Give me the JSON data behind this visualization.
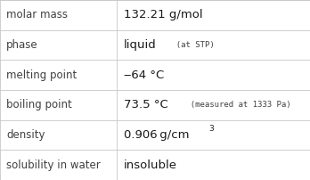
{
  "rows": [
    {
      "label": "molar mass",
      "value_parts": [
        {
          "text": "132.21 g/mol",
          "bold": false,
          "size": 9.5
        }
      ]
    },
    {
      "label": "phase",
      "value_parts": [
        {
          "text": "liquid",
          "bold": false,
          "size": 9.5
        },
        {
          "text": "  (at STP)",
          "bold": false,
          "size": 6.5,
          "mono": true
        }
      ]
    },
    {
      "label": "melting point",
      "value_parts": [
        {
          "text": "‒64 °C",
          "bold": false,
          "size": 9.5
        }
      ]
    },
    {
      "label": "boiling point",
      "value_parts": [
        {
          "text": "73.5 °C",
          "bold": false,
          "size": 9.5
        },
        {
          "text": "  (measured at 1333 Pa)",
          "bold": false,
          "size": 6.5,
          "mono": true
        }
      ]
    },
    {
      "label": "density",
      "value_parts": [
        {
          "text": "0.906 g/cm",
          "bold": false,
          "size": 9.5
        },
        {
          "text": "3",
          "bold": false,
          "size": 6.5,
          "super": true
        },
        {
          "text": "",
          "bold": false,
          "size": 9.5
        }
      ]
    },
    {
      "label": "solubility in water",
      "value_parts": [
        {
          "text": "insoluble",
          "bold": false,
          "size": 9.5
        }
      ]
    }
  ],
  "col_split": 0.375,
  "background_color": "#ffffff",
  "grid_color": "#c8c8c8",
  "label_color": "#404040",
  "value_color": "#1a1a1a",
  "label_fontsize": 8.5,
  "value_fontsize": 9.5,
  "small_fontsize": 6.5
}
